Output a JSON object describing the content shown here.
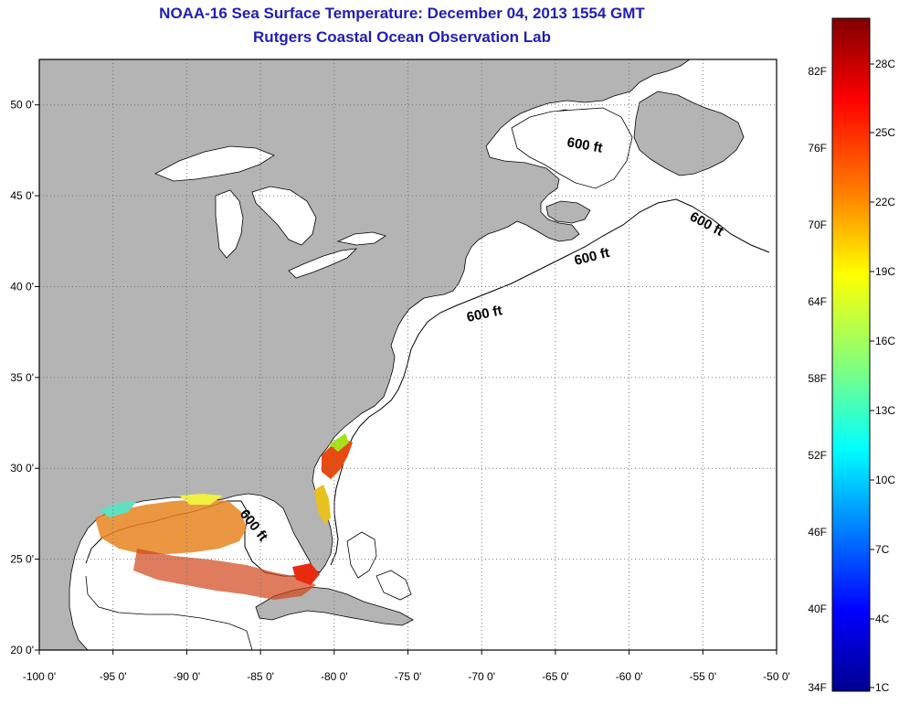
{
  "title_line1": "NOAA-16 Sea Surface Temperature:  December 04, 2013 1554 GMT",
  "title_line2": "Rutgers Coastal Ocean Observation Lab",
  "map": {
    "lon_range": [
      -100,
      -50
    ],
    "lat_range": [
      20,
      52.5
    ],
    "lon_ticks": [
      "-100 0'",
      "-95 0'",
      "-90 0'",
      "-85 0'",
      "-80 0'",
      "-75 0'",
      "-70 0'",
      "-65 0'",
      "-60 0'",
      "-55 0'",
      "-50 0'"
    ],
    "lat_ticks": [
      "50 0'",
      "45 0'",
      "40 0'",
      "35 0'",
      "30 0'",
      "25 0'",
      "20 0'"
    ],
    "isobath_label": "600 ft",
    "grid": "dotted",
    "land_color": "#b4b4b4",
    "water_color": "#ffffff"
  },
  "colorbar": {
    "fahrenheit": [
      "82F",
      "76F",
      "70F",
      "64F",
      "58F",
      "52F",
      "46F",
      "40F",
      "34F"
    ],
    "celsius": [
      "28C",
      "25C",
      "22C",
      "19C",
      "16C",
      "13C",
      "10C",
      "7C",
      "4C",
      "1C"
    ],
    "colors": [
      "#7f0000",
      "#ff0000",
      "#ff7f00",
      "#ffff00",
      "#7fff7f",
      "#00ffff",
      "#007fff",
      "#0000ff",
      "#00008f"
    ]
  }
}
